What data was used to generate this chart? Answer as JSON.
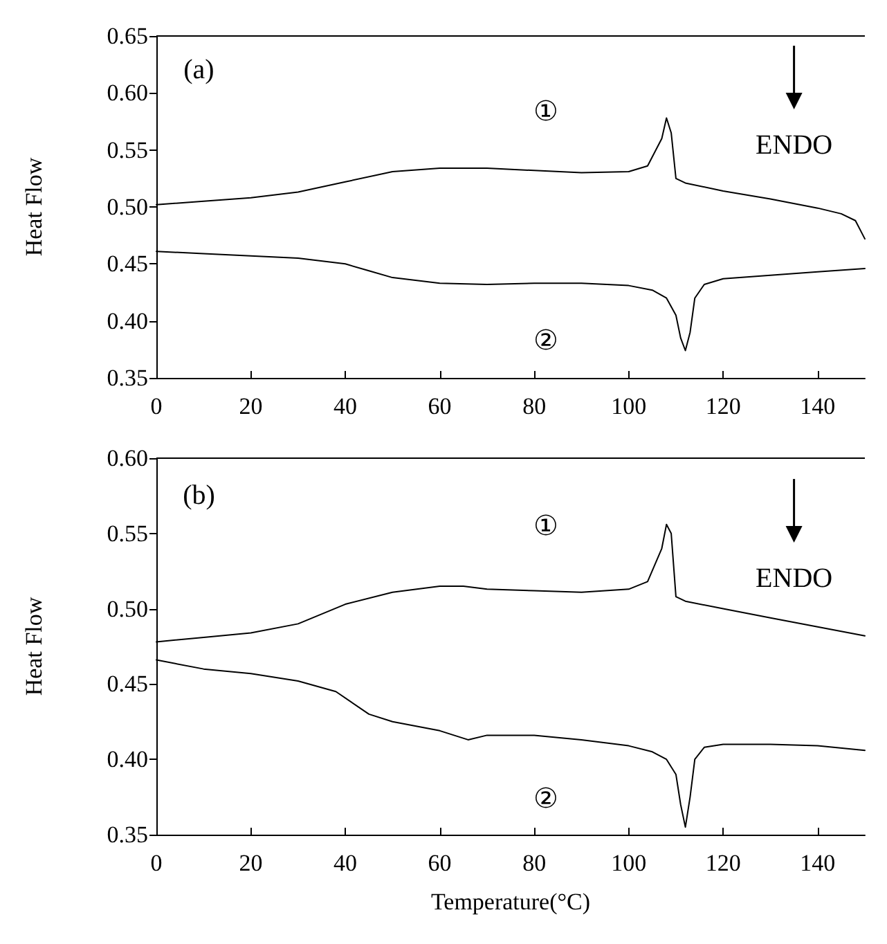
{
  "chart_data": [
    {
      "type": "line",
      "ylabel": "Heat Flow",
      "xlim": [
        0,
        150
      ],
      "ylim": [
        0.35,
        0.65
      ],
      "xticks": [
        0,
        20,
        40,
        60,
        80,
        100,
        120,
        140
      ],
      "yticks": [
        {
          "value": 0.35,
          "label": "0.35"
        },
        {
          "value": 0.4,
          "label": "0.40"
        },
        {
          "value": 0.45,
          "label": "0.45"
        },
        {
          "value": 0.5,
          "label": "0.50"
        },
        {
          "value": 0.55,
          "label": "0.55"
        },
        {
          "value": 0.6,
          "label": "0.60"
        },
        {
          "value": 0.65,
          "label": "0.65"
        }
      ],
      "grid": false,
      "marker": "none",
      "line_style": "solid",
      "annotations": [
        "(a)",
        "ENDO",
        "①",
        "②"
      ],
      "series": [
        {
          "color": "#000000",
          "x": [
            0,
            10,
            20,
            30,
            40,
            50,
            60,
            70,
            80,
            90,
            100,
            104,
            107,
            108,
            109,
            110,
            112,
            120,
            130,
            140,
            145,
            148,
            150
          ],
          "values": [
            0.502,
            0.505,
            0.508,
            0.513,
            0.522,
            0.531,
            0.534,
            0.534,
            0.532,
            0.53,
            0.531,
            0.536,
            0.56,
            0.578,
            0.565,
            0.525,
            0.521,
            0.514,
            0.507,
            0.499,
            0.494,
            0.488,
            0.472
          ]
        },
        {
          "color": "#000000",
          "x": [
            0,
            10,
            20,
            30,
            40,
            45,
            50,
            60,
            70,
            80,
            90,
            100,
            105,
            108,
            110,
            111,
            112,
            113,
            114,
            116,
            120,
            130,
            140,
            150
          ],
          "values": [
            0.461,
            0.459,
            0.457,
            0.455,
            0.45,
            0.444,
            0.438,
            0.433,
            0.432,
            0.433,
            0.433,
            0.431,
            0.427,
            0.42,
            0.405,
            0.385,
            0.374,
            0.39,
            0.42,
            0.432,
            0.437,
            0.44,
            0.443,
            0.446
          ]
        }
      ]
    },
    {
      "type": "line",
      "xlabel": "Temperature(°C)",
      "ylabel": "Heat Flow",
      "xlim": [
        0,
        150
      ],
      "ylim": [
        0.35,
        0.6
      ],
      "xticks": [
        0,
        20,
        40,
        60,
        80,
        100,
        120,
        140
      ],
      "yticks": [
        {
          "value": 0.35,
          "label": "0.35"
        },
        {
          "value": 0.4,
          "label": "0.40"
        },
        {
          "value": 0.45,
          "label": "0.45"
        },
        {
          "value": 0.5,
          "label": "0.50"
        },
        {
          "value": 0.55,
          "label": "0.55"
        },
        {
          "value": 0.6,
          "label": "0.60"
        }
      ],
      "grid": false,
      "marker": "none",
      "line_style": "solid",
      "annotations": [
        "(b)",
        "ENDO",
        "①",
        "②"
      ],
      "series": [
        {
          "color": "#000000",
          "x": [
            0,
            10,
            20,
            30,
            40,
            50,
            60,
            65,
            70,
            80,
            90,
            100,
            104,
            107,
            108,
            109,
            110,
            112,
            120,
            130,
            140,
            150
          ],
          "values": [
            0.478,
            0.481,
            0.484,
            0.49,
            0.503,
            0.511,
            0.515,
            0.515,
            0.513,
            0.512,
            0.511,
            0.513,
            0.518,
            0.54,
            0.556,
            0.55,
            0.508,
            0.505,
            0.5,
            0.494,
            0.488,
            0.482
          ]
        },
        {
          "color": "#000000",
          "x": [
            0,
            10,
            20,
            30,
            38,
            45,
            50,
            60,
            66,
            70,
            80,
            90,
            100,
            105,
            108,
            110,
            111,
            112,
            113,
            114,
            116,
            120,
            130,
            140,
            150
          ],
          "values": [
            0.466,
            0.46,
            0.457,
            0.452,
            0.445,
            0.43,
            0.425,
            0.419,
            0.413,
            0.416,
            0.416,
            0.413,
            0.409,
            0.405,
            0.4,
            0.39,
            0.37,
            0.355,
            0.375,
            0.4,
            0.408,
            0.41,
            0.41,
            0.409,
            0.406
          ]
        }
      ]
    }
  ]
}
